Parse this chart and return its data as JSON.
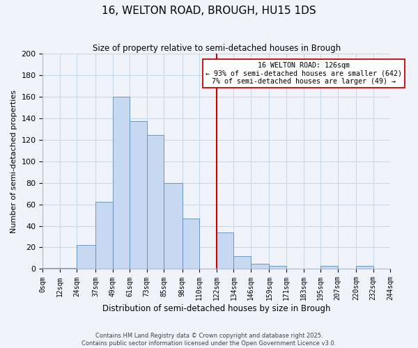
{
  "title": "16, WELTON ROAD, BROUGH, HU15 1DS",
  "subtitle": "Size of property relative to semi-detached houses in Brough",
  "xlabel": "Distribution of semi-detached houses by size in Brough",
  "ylabel": "Number of semi-detached properties",
  "bin_labels": [
    "0sqm",
    "12sqm",
    "24sqm",
    "37sqm",
    "49sqm",
    "61sqm",
    "73sqm",
    "85sqm",
    "98sqm",
    "110sqm",
    "122sqm",
    "134sqm",
    "146sqm",
    "159sqm",
    "171sqm",
    "183sqm",
    "195sqm",
    "207sqm",
    "220sqm",
    "232sqm",
    "244sqm"
  ],
  "bar_values": [
    1,
    1,
    22,
    62,
    160,
    137,
    124,
    80,
    47,
    0,
    34,
    12,
    5,
    3,
    0,
    0,
    3,
    0,
    3,
    0
  ],
  "bar_color": "#c6d9f1",
  "bar_edge_color": "#5b8db8",
  "vline_x": 122,
  "vline_color": "#cc0000",
  "annotation_title": "16 WELTON ROAD: 126sqm",
  "annotation_line1": "← 93% of semi-detached houses are smaller (642)",
  "annotation_line2": "7% of semi-detached houses are larger (49) →",
  "annotation_box_color": "#ffffff",
  "annotation_border_color": "#cc0000",
  "ylim": [
    0,
    200
  ],
  "yticks": [
    0,
    20,
    40,
    60,
    80,
    100,
    120,
    140,
    160,
    180,
    200
  ],
  "footer_line1": "Contains HM Land Registry data © Crown copyright and database right 2025.",
  "footer_line2": "Contains public sector information licensed under the Open Government Licence v3.0.",
  "bg_color": "#f0f4fa",
  "grid_color": "#c8d8e8"
}
